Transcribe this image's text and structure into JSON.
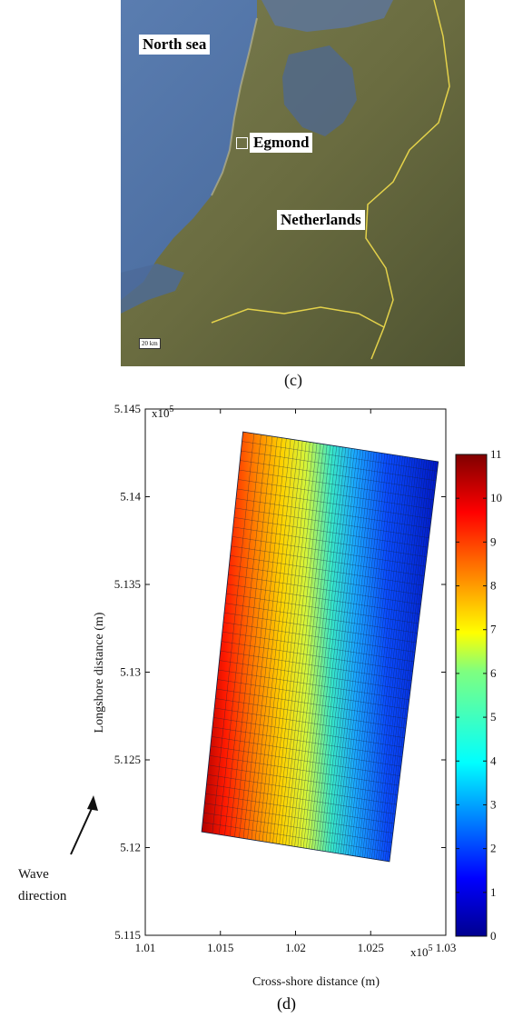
{
  "map": {
    "labels": {
      "sea": "North sea",
      "site": "Egmond",
      "country": "Netherlands"
    },
    "scale_bar": "20 km",
    "caption": "(c)",
    "colors": {
      "sea": "#4a6a9a",
      "land": "#6b6e45",
      "border": "#e8d84a"
    }
  },
  "chart_data": {
    "type": "heatmap",
    "caption": "(d)",
    "xlabel": "Cross-shore distance (m)",
    "ylabel": "Longshore distance (m)",
    "xlim": [
      101000,
      103000
    ],
    "ylim": [
      511500,
      514500
    ],
    "x_ticks": [
      101000,
      101500,
      102000,
      102500,
      103000
    ],
    "x_tick_labels": [
      "1.01",
      "1.015",
      "1.02",
      "1.025",
      "1.03"
    ],
    "y_ticks": [
      511500,
      512000,
      512500,
      513000,
      513500,
      514000,
      514500
    ],
    "y_tick_labels": [
      "5.115",
      "5.12",
      "5.125",
      "5.13",
      "5.135",
      "5.14",
      "5.145"
    ],
    "x_multiplier": "x10",
    "y_multiplier": "x10",
    "multiplier_exponent": "5",
    "colorbar": {
      "range": [
        0,
        11
      ],
      "ticks": [
        0,
        1,
        2,
        3,
        4,
        5,
        6,
        7,
        8,
        9,
        10,
        11
      ],
      "colormap": "jet"
    },
    "grid_domain": {
      "corners": [
        {
          "x": 101375,
          "y": 512090
        },
        {
          "x": 101650,
          "y": 514370
        },
        {
          "x": 102950,
          "y": 514200
        },
        {
          "x": 102625,
          "y": 511920
        }
      ],
      "value_at_shore_edge": 11,
      "value_at_offshore_edge": 0
    },
    "annotation": {
      "wave_line1": "Wave",
      "wave_line2": "direction"
    }
  }
}
